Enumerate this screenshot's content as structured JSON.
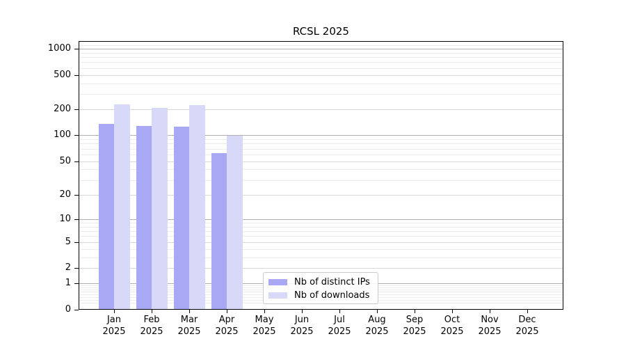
{
  "chart_data": {
    "type": "bar",
    "title": "RCSL 2025",
    "categories": [
      "Jan 2025",
      "Feb 2025",
      "Mar 2025",
      "Apr 2025",
      "May 2025",
      "Jun 2025",
      "Jul 2025",
      "Aug 2025",
      "Sep 2025",
      "Oct 2025",
      "Nov 2025",
      "Dec 2025"
    ],
    "series": [
      {
        "name": "Nb of distinct IPs",
        "color": "#a8a8f5",
        "values": [
          137,
          129,
          126,
          62,
          null,
          null,
          null,
          null,
          null,
          null,
          null,
          null
        ]
      },
      {
        "name": "Nb of downloads",
        "color": "#d8d8f9",
        "values": [
          228,
          210,
          225,
          100,
          null,
          null,
          null,
          null,
          null,
          null,
          null,
          null
        ]
      }
    ],
    "xlabel": "",
    "ylabel": "",
    "yscale": "log1p",
    "yticks": [
      0,
      1,
      2,
      5,
      10,
      20,
      50,
      100,
      200,
      500,
      1000
    ],
    "ylim": [
      0,
      1200
    ],
    "grid": true,
    "legend_position": "lower center"
  },
  "colors": {
    "grid_major": "#b0b0b0",
    "grid_mid": "#d7d7d7",
    "grid_minor": "#ececec",
    "spine": "#000000",
    "background": "#ffffff"
  }
}
